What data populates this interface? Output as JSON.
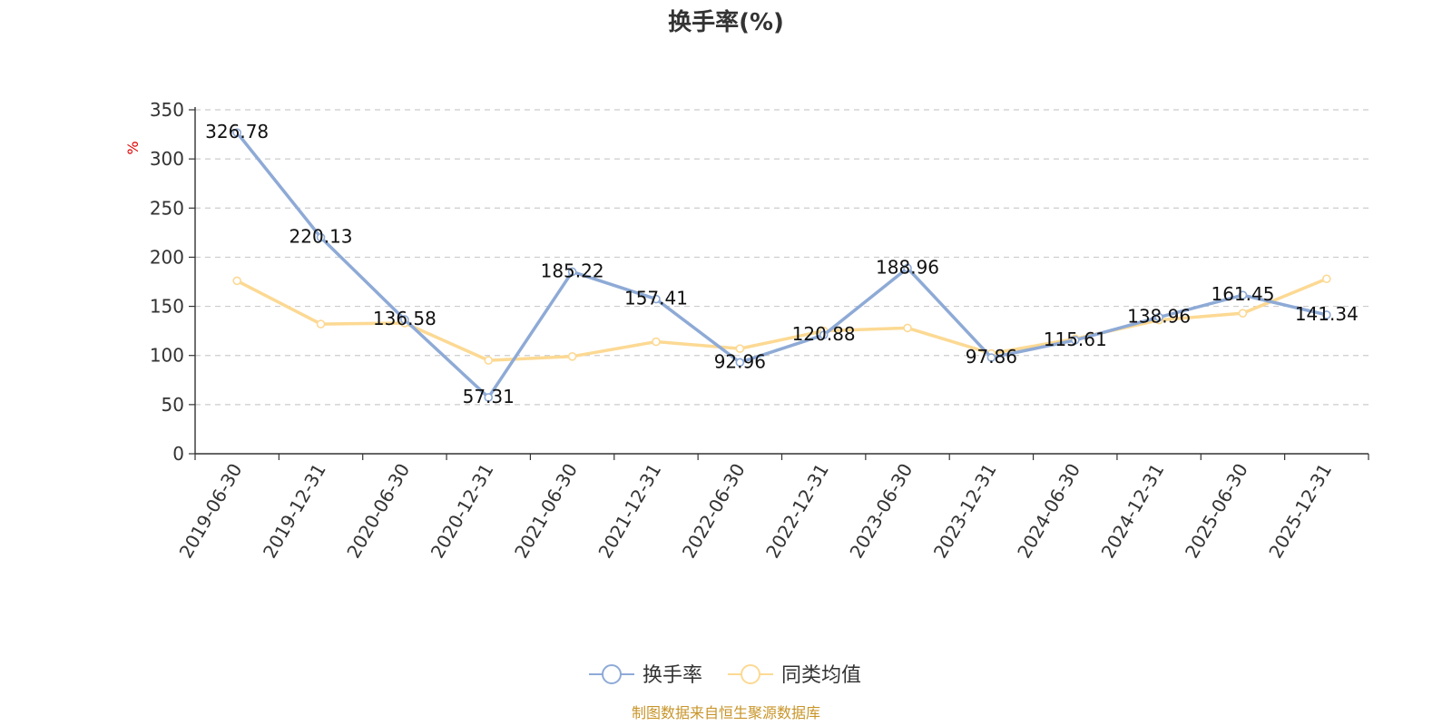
{
  "chart_data": {
    "type": "line",
    "title": "换手率(%)",
    "ylabel": "%",
    "xlabel": "",
    "ylim": [
      0,
      350
    ],
    "yticks": [
      0,
      50,
      100,
      150,
      200,
      250,
      300,
      350
    ],
    "grid": true,
    "legend_position": "bottom-center",
    "categories": [
      "2019-06-30",
      "2019-12-31",
      "2020-06-30",
      "2020-12-31",
      "2021-06-30",
      "2021-12-31",
      "2022-06-30",
      "2022-12-31",
      "2023-06-30",
      "2023-12-31",
      "2024-06-30",
      "2024-12-31",
      "2025-06-30",
      "2025-12-31"
    ],
    "series": [
      {
        "name": "换手率",
        "color": "#8eaad6",
        "values": [
          326.78,
          220.13,
          136.58,
          57.31,
          185.22,
          157.41,
          92.96,
          120.88,
          188.96,
          97.86,
          115.61,
          138.96,
          161.45,
          141.34
        ],
        "labels": [
          "326.78",
          "220.13",
          "136.58",
          "57.31",
          "185.22",
          "157.41",
          "92.96",
          "120.88",
          "188.96",
          "97.86",
          "115.61",
          "138.96",
          "161.45",
          "141.34"
        ]
      },
      {
        "name": "同类均值",
        "color": "#fcd993",
        "values": [
          176,
          132,
          133,
          95,
          99,
          114,
          107,
          125,
          128,
          102,
          117,
          136,
          143,
          178
        ]
      }
    ],
    "source": "制图数据来自恒生聚源数据库"
  }
}
